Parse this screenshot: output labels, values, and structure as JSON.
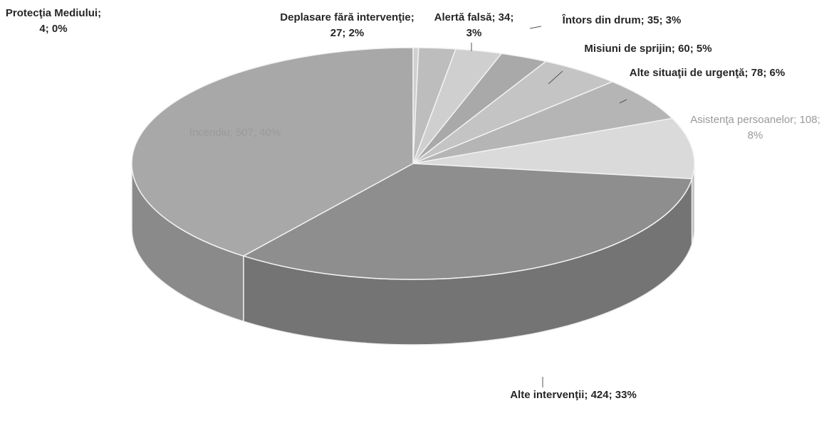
{
  "chart_data": {
    "type": "pie",
    "values": [
      4,
      27,
      34,
      35,
      60,
      78,
      108,
      424,
      507
    ],
    "value_labels": [
      "Protecţia Mediului; 4; 0%",
      "Deplasare fără intervenţie; 27; 2%",
      "Alertă falsă; 34; 3%",
      "Întors din drum; 35; 3%",
      "Misiuni de sprijin; 60; 5%",
      "Alte situaţii de urgenţă; 78; 6%",
      "Asistenţa persoanelor; 108; 8%",
      "Alte intervenţii; 424; 33%",
      "Incendiu; 507; 40%"
    ],
    "colors": [
      "#d0d0d0",
      "#bdbdbd",
      "#cfcfcf",
      "#a9a9a9",
      "#c4c4c4",
      "#b5b5b5",
      "#dadada",
      "#8e8e8e",
      "#a8a8a8"
    ]
  }
}
